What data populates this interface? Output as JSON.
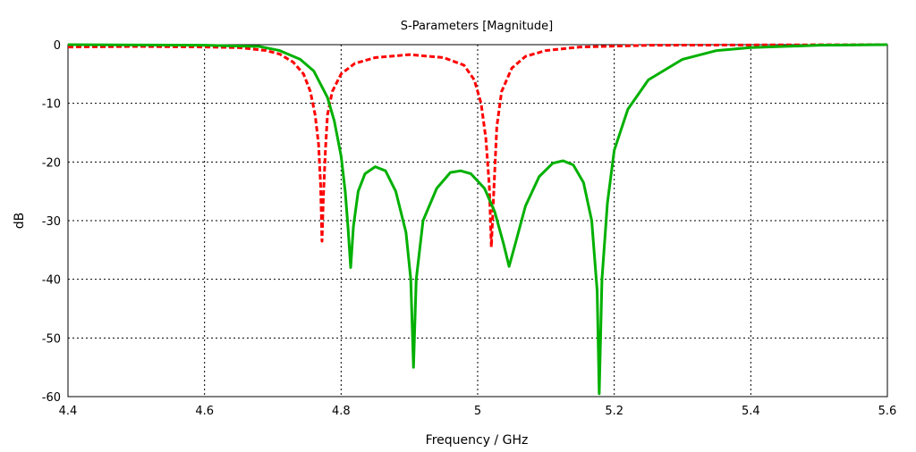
{
  "chart_data": {
    "type": "line",
    "title": "S-Parameters [Magnitude]",
    "xlabel": "Frequency / GHz",
    "ylabel": "dB",
    "xlim": [
      4.4,
      5.6
    ],
    "ylim": [
      -60,
      0
    ],
    "xticks": [
      "4.4",
      "4.6",
      "4.8",
      "5",
      "5.2",
      "5.4",
      "5.6"
    ],
    "yticks": [
      "0",
      "-10",
      "-20",
      "-30",
      "-40",
      "-50",
      "-60"
    ],
    "grid": true,
    "series": [
      {
        "color": "#ff0000",
        "style": "dashed",
        "points": [
          [
            4.4,
            -0.4
          ],
          [
            4.5,
            -0.3
          ],
          [
            4.6,
            -0.4
          ],
          [
            4.65,
            -0.5
          ],
          [
            4.69,
            -1.0
          ],
          [
            4.71,
            -1.6
          ],
          [
            4.73,
            -3.0
          ],
          [
            4.745,
            -5.0
          ],
          [
            4.755,
            -8.0
          ],
          [
            4.762,
            -12.0
          ],
          [
            4.767,
            -17.0
          ],
          [
            4.77,
            -24.0
          ],
          [
            4.772,
            -33.5
          ],
          [
            4.774,
            -26.0
          ],
          [
            4.777,
            -18.0
          ],
          [
            4.78,
            -12.0
          ],
          [
            4.787,
            -8.0
          ],
          [
            4.8,
            -5.0
          ],
          [
            4.82,
            -3.2
          ],
          [
            4.85,
            -2.2
          ],
          [
            4.9,
            -1.7
          ],
          [
            4.95,
            -2.2
          ],
          [
            4.98,
            -3.5
          ],
          [
            4.995,
            -6.0
          ],
          [
            5.005,
            -10.0
          ],
          [
            5.012,
            -16.0
          ],
          [
            5.017,
            -24.0
          ],
          [
            5.02,
            -34.5
          ],
          [
            5.024,
            -24.0
          ],
          [
            5.028,
            -14.0
          ],
          [
            5.035,
            -8.0
          ],
          [
            5.05,
            -4.0
          ],
          [
            5.07,
            -2.0
          ],
          [
            5.1,
            -1.0
          ],
          [
            5.15,
            -0.4
          ],
          [
            5.25,
            -0.1
          ],
          [
            5.4,
            -0.05
          ],
          [
            5.6,
            0.0
          ]
        ]
      },
      {
        "color": "#00b000",
        "style": "solid",
        "points": [
          [
            4.4,
            0.0
          ],
          [
            4.6,
            -0.1
          ],
          [
            4.68,
            -0.3
          ],
          [
            4.71,
            -1.0
          ],
          [
            4.74,
            -2.5
          ],
          [
            4.76,
            -4.5
          ],
          [
            4.78,
            -9.0
          ],
          [
            4.79,
            -13.0
          ],
          [
            4.8,
            -19.0
          ],
          [
            4.806,
            -25.0
          ],
          [
            4.81,
            -31.0
          ],
          [
            4.814,
            -38.0
          ],
          [
            4.818,
            -31.0
          ],
          [
            4.825,
            -25.0
          ],
          [
            4.835,
            -22.0
          ],
          [
            4.85,
            -20.8
          ],
          [
            4.865,
            -21.5
          ],
          [
            4.88,
            -25.0
          ],
          [
            4.895,
            -32.0
          ],
          [
            4.902,
            -40.0
          ],
          [
            4.906,
            -55.0
          ],
          [
            4.91,
            -40.0
          ],
          [
            4.92,
            -30.0
          ],
          [
            4.94,
            -24.5
          ],
          [
            4.96,
            -21.8
          ],
          [
            4.975,
            -21.5
          ],
          [
            4.99,
            -22.0
          ],
          [
            5.01,
            -24.5
          ],
          [
            5.025,
            -28.5
          ],
          [
            5.038,
            -34.0
          ],
          [
            5.046,
            -37.8
          ],
          [
            5.055,
            -34.0
          ],
          [
            5.07,
            -27.5
          ],
          [
            5.09,
            -22.5
          ],
          [
            5.11,
            -20.2
          ],
          [
            5.125,
            -19.8
          ],
          [
            5.14,
            -20.5
          ],
          [
            5.155,
            -23.5
          ],
          [
            5.167,
            -30.0
          ],
          [
            5.175,
            -42.0
          ],
          [
            5.178,
            -59.5
          ],
          [
            5.182,
            -40.0
          ],
          [
            5.19,
            -27.0
          ],
          [
            5.2,
            -18.0
          ],
          [
            5.22,
            -11.0
          ],
          [
            5.25,
            -6.0
          ],
          [
            5.3,
            -2.5
          ],
          [
            5.35,
            -1.0
          ],
          [
            5.4,
            -0.5
          ],
          [
            5.5,
            -0.1
          ],
          [
            5.6,
            0.0
          ]
        ]
      }
    ]
  }
}
